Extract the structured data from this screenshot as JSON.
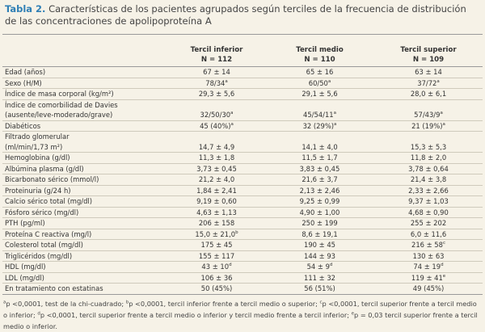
{
  "title": {
    "label": "Tabla 2.",
    "text": "Características de los pacientes agrupados según terciles de la frecuencia de distribución de las concentraciones de apolipoproteína A"
  },
  "table": {
    "header": [
      {
        "name": "Tercil inferior",
        "n": "N = 112"
      },
      {
        "name": "Tercil medio",
        "n": "N = 110"
      },
      {
        "name": "Tercil superior",
        "n": "N = 109"
      }
    ],
    "rows": [
      {
        "label": [
          "Edad (años)"
        ],
        "cells": [
          {
            "t": "67 ± 14"
          },
          {
            "t": "65 ± 16"
          },
          {
            "t": "63 ± 14"
          }
        ]
      },
      {
        "label": [
          "Sexo (H/M)"
        ],
        "cells": [
          {
            "t": "78/34",
            "s": "a"
          },
          {
            "t": "60/50",
            "s": "a"
          },
          {
            "t": "37/72",
            "s": "a"
          }
        ]
      },
      {
        "label": [
          "Índice de masa corporal (kg/m²)"
        ],
        "cells": [
          {
            "t": "29,3 ± 5,6"
          },
          {
            "t": "29,1 ± 5,6"
          },
          {
            "t": "28,0 ± 6,1"
          }
        ]
      },
      {
        "label": [
          "Índice de comorbilidad de Davies",
          "(ausente/leve-moderado/grave)"
        ],
        "cells": [
          {
            "t": "32/50/30",
            "s": "a"
          },
          {
            "t": "45/54/11",
            "s": "a"
          },
          {
            "t": "57/43/9",
            "s": "a"
          }
        ]
      },
      {
        "label": [
          "Diabéticos"
        ],
        "cells": [
          {
            "t": "45 (40%)",
            "s": "a"
          },
          {
            "t": "32 (29%)",
            "s": "a"
          },
          {
            "t": "21 (19%)",
            "s": "a"
          }
        ]
      },
      {
        "label": [
          "Filtrado glomerular",
          "(ml/min/1,73 m²)"
        ],
        "cells": [
          {
            "t": "14,7 ± 4,9"
          },
          {
            "t": "14,1 ± 4,0"
          },
          {
            "t": "15,3 ± 5,3"
          }
        ]
      },
      {
        "label": [
          "Hemoglobina (g/dl)"
        ],
        "cells": [
          {
            "t": "11,3 ± 1,8"
          },
          {
            "t": "11,5 ± 1,7"
          },
          {
            "t": "11,8 ± 2,0"
          }
        ]
      },
      {
        "label": [
          "Albúmina plasma (g/dl)"
        ],
        "cells": [
          {
            "t": "3,73 ± 0,45"
          },
          {
            "t": "3,83 ± 0,45"
          },
          {
            "t": "3,78 ± 0,64"
          }
        ]
      },
      {
        "label": [
          "Bicarbonato sérico (mmol/l)"
        ],
        "cells": [
          {
            "t": "21,2 ± 4,0"
          },
          {
            "t": "21,6 ± 3,7"
          },
          {
            "t": "21,4 ± 3,8"
          }
        ]
      },
      {
        "label": [
          "Proteinuria (g/24 h)"
        ],
        "cells": [
          {
            "t": "1,84 ± 2,41"
          },
          {
            "t": "2,13 ± 2,46"
          },
          {
            "t": "2,33 ± 2,66"
          }
        ]
      },
      {
        "label": [
          "Calcio sérico total (mg/dl)"
        ],
        "cells": [
          {
            "t": "9,19 ± 0,60"
          },
          {
            "t": "9,25 ± 0,99"
          },
          {
            "t": "9,37 ± 1,03"
          }
        ]
      },
      {
        "label": [
          "Fósforo sérico (mg/dl)"
        ],
        "cells": [
          {
            "t": "4,63 ± 1,13"
          },
          {
            "t": "4,90 ± 1,00"
          },
          {
            "t": "4,68 ± 0,90"
          }
        ]
      },
      {
        "label": [
          "PTH (pg/ml)"
        ],
        "cells": [
          {
            "t": "206 ± 158"
          },
          {
            "t": "250 ± 199"
          },
          {
            "t": "255 ± 202"
          }
        ]
      },
      {
        "label": [
          "Proteína C reactiva (mg/l)"
        ],
        "cells": [
          {
            "t": "15,0 ± 21,0",
            "s": "b"
          },
          {
            "t": "8,6 ± 19,1"
          },
          {
            "t": "6,0 ± 11,6"
          }
        ]
      },
      {
        "label": [
          "Colesterol total (mg/dl)"
        ],
        "cells": [
          {
            "t": "175 ± 45"
          },
          {
            "t": "190 ± 45"
          },
          {
            "t": "216 ± 58",
            "s": "c"
          }
        ]
      },
      {
        "label": [
          "Triglicéridos (mg/dl)"
        ],
        "cells": [
          {
            "t": "155 ± 117"
          },
          {
            "t": "144 ± 93"
          },
          {
            "t": "130 ± 63"
          }
        ]
      },
      {
        "label": [
          "HDL (mg/dl)"
        ],
        "cells": [
          {
            "t": "43 ± 10",
            "s": "d"
          },
          {
            "t": "54 ± 9",
            "s": "d"
          },
          {
            "t": "74 ± 19",
            "s": "d"
          }
        ]
      },
      {
        "label": [
          "LDL (mg/dl)"
        ],
        "cells": [
          {
            "t": "106 ± 36"
          },
          {
            "t": "111 ± 32"
          },
          {
            "t": "119 ± 41",
            "s": "e"
          }
        ]
      },
      {
        "label": [
          "En tratamiento con estatinas"
        ],
        "cells": [
          {
            "t": "50 (45%)"
          },
          {
            "t": "56 (51%)"
          },
          {
            "t": "49 (45%)"
          }
        ]
      }
    ]
  },
  "footnotes": [
    {
      "s": "a",
      "t": "p <0,0001, test de la chi-cuadrado;"
    },
    {
      "s": "b",
      "t": "p <0,0001, tercil inferior frente a tercil medio o superior;"
    },
    {
      "s": "c",
      "t": "p <0,0001, tercil superior frente a tercil medio o inferior;"
    },
    {
      "s": "d",
      "t": "p <0,0001, tercil superior frente a tercil medio o inferior y tercil medio frente a tercil inferior;"
    },
    {
      "s": "e",
      "t": "p = 0,03 tercil superior frente a tercil medio o inferior."
    }
  ]
}
